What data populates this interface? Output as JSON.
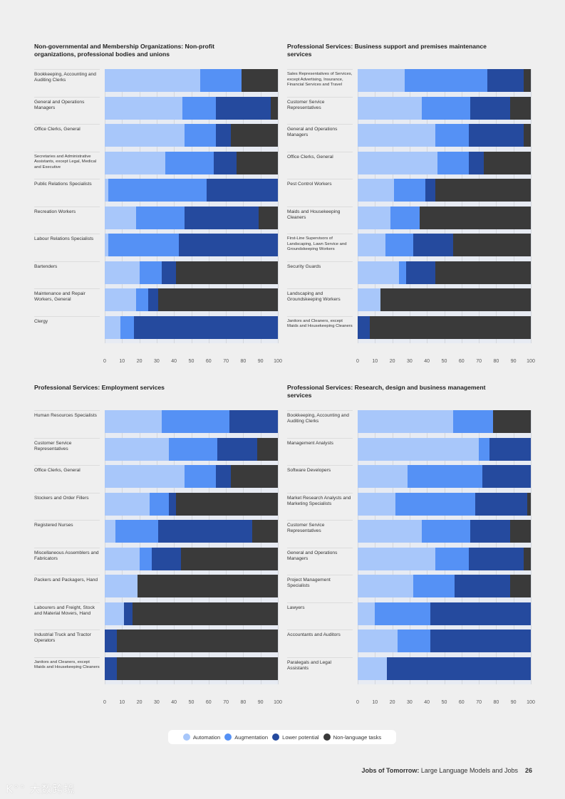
{
  "legend": [
    {
      "label": "Automation",
      "color": "#a8c7fa"
    },
    {
      "label": "Augmentation",
      "color": "#5591f5"
    },
    {
      "label": "Lower potential",
      "color": "#254a9e"
    },
    {
      "label": "Non-language tasks",
      "color": "#3a3a3a"
    }
  ],
  "footer": {
    "title_bold": "Jobs of Tomorrow:",
    "title_rest": " Large Language Models and Jobs",
    "page": "26"
  },
  "watermark": "大数跨境",
  "chart_data": [
    {
      "type": "bar",
      "orientation": "horizontal",
      "stacked": true,
      "title": "Non-governmental and Membership Organizations: Non-profit organizations, professional bodies and unions",
      "xlim": [
        0,
        100
      ],
      "xticks": [
        "0",
        "10",
        "20",
        "30",
        "40",
        "50",
        "60",
        "70",
        "80",
        "90",
        "100"
      ],
      "categories": [
        "Bookkeeping, Accounting and Auditing Clerks",
        "General and Operations Managers",
        "Office Clerks, General",
        "Secretaries and Administrative Assistants, except Legal, Medical and Executive",
        "Public Relations Specialists",
        "Recreation Workers",
        "Labour Relations Specialists",
        "Bartenders",
        "Maintenance and Repair Workers, General",
        "Clergy"
      ],
      "series": [
        {
          "name": "Automation",
          "values": [
            55,
            45,
            46,
            35,
            2,
            18,
            2,
            20,
            18,
            9
          ]
        },
        {
          "name": "Augmentation",
          "values": [
            24,
            19,
            18,
            28,
            57,
            28,
            41,
            13,
            7,
            8
          ]
        },
        {
          "name": "Lower potential",
          "values": [
            0,
            32,
            9,
            13,
            41,
            43,
            57,
            8,
            6,
            83
          ]
        },
        {
          "name": "Non-language tasks",
          "values": [
            21,
            4,
            27,
            24,
            0,
            11,
            0,
            59,
            69,
            0
          ]
        }
      ]
    },
    {
      "type": "bar",
      "orientation": "horizontal",
      "stacked": true,
      "title": "Professional Services: Business support and premises maintenance services",
      "xlim": [
        0,
        100
      ],
      "xticks": [
        "0",
        "10",
        "20",
        "30",
        "40",
        "50",
        "60",
        "70",
        "80",
        "90",
        "100"
      ],
      "categories": [
        "Sales Representatives of Services, except Advertising, Insurance, Financial Services and Travel",
        "Customer Service Representatives",
        "General and Operations Managers",
        "Office Clerks, General",
        "Pest Control Workers",
        "Maids and Housekeeping Cleaners",
        "First-Line Supervisors of Landscaping, Lawn Service and Groundskeeping Workers",
        "Security Guards",
        "Landscaping and Groundskeeping Workers",
        "Janitors and Cleaners, except Maids and Housekeeping Cleaners"
      ],
      "series": [
        {
          "name": "Automation",
          "values": [
            27,
            37,
            45,
            46,
            21,
            19,
            16,
            24,
            13,
            0
          ]
        },
        {
          "name": "Augmentation",
          "values": [
            48,
            28,
            19,
            18,
            18,
            17,
            16,
            4,
            0,
            0
          ]
        },
        {
          "name": "Lower potential",
          "values": [
            21,
            23,
            32,
            9,
            6,
            0,
            23,
            17,
            0,
            7
          ]
        },
        {
          "name": "Non-language tasks",
          "values": [
            4,
            12,
            4,
            27,
            55,
            64,
            45,
            55,
            87,
            93
          ]
        }
      ]
    },
    {
      "type": "bar",
      "orientation": "horizontal",
      "stacked": true,
      "title": "Professional Services: Employment services",
      "xlim": [
        0,
        100
      ],
      "xticks": [
        "0",
        "10",
        "20",
        "30",
        "40",
        "50",
        "60",
        "70",
        "80",
        "90",
        "100"
      ],
      "categories": [
        "Human Resources Specialists",
        "Customer Service Representatives",
        "Office Clerks, General",
        "Stockers and Order Fillers",
        "Registered Nurses",
        "Miscellaneous Assemblers and Fabricators",
        "Packers and Packagers, Hand",
        "Labourers and Freight, Stock and Material Movers, Hand",
        "Industrial Truck and Tractor Operators",
        "Janitors and Cleaners, except Maids and Housekeeping Cleaners"
      ],
      "series": [
        {
          "name": "Automation",
          "values": [
            33,
            37,
            46,
            26,
            6,
            20,
            19,
            11,
            0,
            0
          ]
        },
        {
          "name": "Augmentation",
          "values": [
            39,
            28,
            18,
            11,
            25,
            7,
            0,
            0,
            0,
            0
          ]
        },
        {
          "name": "Lower potential",
          "values": [
            28,
            23,
            9,
            4,
            54,
            17,
            0,
            5,
            7,
            7
          ]
        },
        {
          "name": "Non-language tasks",
          "values": [
            0,
            12,
            27,
            59,
            15,
            56,
            81,
            84,
            93,
            93
          ]
        }
      ]
    },
    {
      "type": "bar",
      "orientation": "horizontal",
      "stacked": true,
      "title": "Professional Services: Research, design and business management services",
      "xlim": [
        0,
        100
      ],
      "xticks": [
        "0",
        "10",
        "20",
        "30",
        "40",
        "50",
        "60",
        "70",
        "80",
        "90",
        "100"
      ],
      "categories": [
        "Bookkeeping, Accounting and Auditing Clerks",
        "Management Analysts",
        "Software Developers",
        "Market Research Analysts and Marketing Specialists",
        "Customer Service Representatives",
        "General and Operations Managers",
        "Project Management Specialists",
        "Lawyers",
        "Accountants and Auditors",
        "Paralegals and Legal Assistants"
      ],
      "series": [
        {
          "name": "Automation",
          "values": [
            55,
            70,
            29,
            22,
            37,
            45,
            32,
            10,
            23,
            17
          ]
        },
        {
          "name": "Augmentation",
          "values": [
            23,
            6,
            43,
            46,
            28,
            19,
            24,
            32,
            19,
            0
          ]
        },
        {
          "name": "Lower potential",
          "values": [
            0,
            24,
            28,
            30,
            23,
            32,
            32,
            58,
            58,
            83
          ]
        },
        {
          "name": "Non-language tasks",
          "values": [
            22,
            0,
            0,
            2,
            12,
            4,
            12,
            0,
            0,
            0
          ]
        }
      ]
    }
  ]
}
